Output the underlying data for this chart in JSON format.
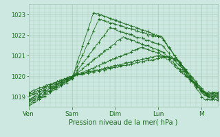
{
  "bg_color": "#cce8e0",
  "grid_color": "#aaccbb",
  "line_color": "#1a6b1a",
  "marker_color": "#1a6b1a",
  "xlabel": "Pression niveau de la mer( hPa )",
  "xlabel_color": "#1a6b1a",
  "tick_color": "#1a6b1a",
  "ytick_color": "#1a6b1a",
  "ylim": [
    1018.5,
    1023.5
  ],
  "ylabel_ticks": [
    1019,
    1020,
    1021,
    1022,
    1023
  ],
  "x_ticks": [
    0,
    48,
    96,
    144,
    192
  ],
  "x_tick_labels": [
    "Ven",
    "Sam",
    "Dim",
    "Lun",
    "M"
  ],
  "num_hours": 210,
  "series_params": [
    [
      1018.55,
      48,
      1019.85,
      72,
      1023.1,
      148,
      1021.9,
      195,
      1018.85
    ],
    [
      1018.65,
      48,
      1019.9,
      78,
      1022.75,
      148,
      1021.85,
      195,
      1019.05
    ],
    [
      1018.75,
      48,
      1019.9,
      90,
      1022.35,
      148,
      1021.5,
      195,
      1019.1
    ],
    [
      1018.85,
      48,
      1019.95,
      105,
      1021.9,
      148,
      1021.2,
      195,
      1019.15
    ],
    [
      1019.0,
      48,
      1019.95,
      125,
      1021.4,
      148,
      1021.05,
      195,
      1019.2
    ],
    [
      1019.1,
      48,
      1020.0,
      145,
      1021.0,
      165,
      1020.8,
      200,
      1019.0
    ],
    [
      1019.2,
      48,
      1020.0,
      155,
      1020.95,
      165,
      1020.75,
      200,
      1018.95
    ]
  ]
}
